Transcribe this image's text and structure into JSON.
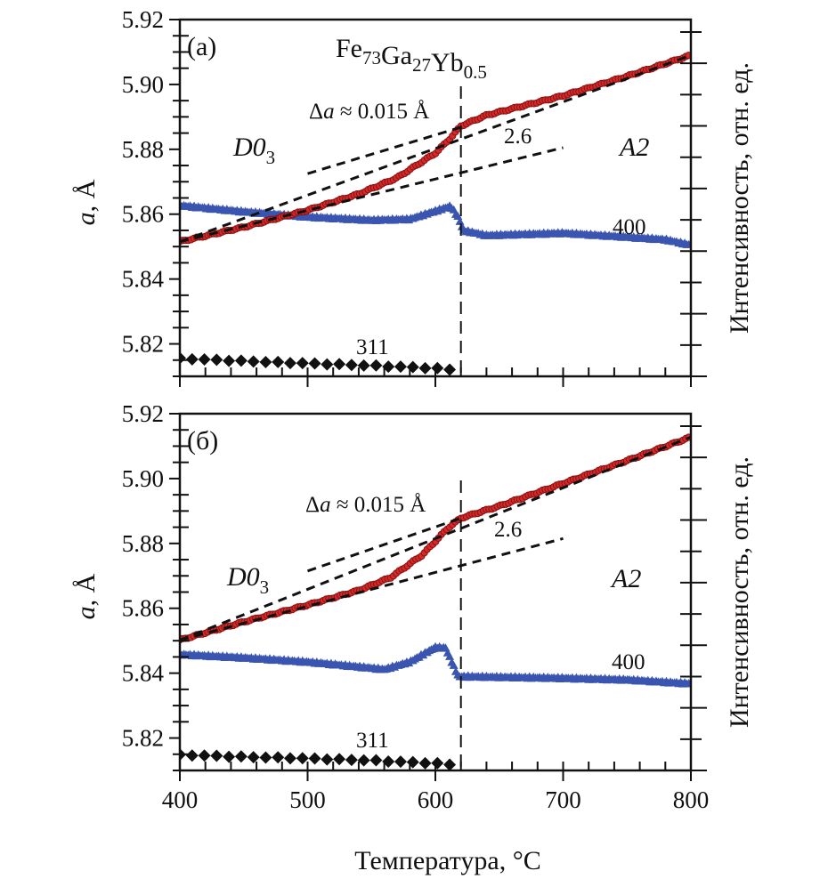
{
  "chart_data": [
    {
      "type": "scatter",
      "panel_label": "(a)",
      "title": "Fe73Ga27Yb0.5",
      "title_parts": [
        {
          "text": "Fe",
          "sub": "73"
        },
        {
          "text": "Ga",
          "sub": "27"
        },
        {
          "text": "Yb",
          "sub": "0.5"
        }
      ],
      "xlabel": "Температура, °C",
      "ylabel_left": "a, Å",
      "ylabel_right": "Интенсивность, отн. ед.",
      "xlim": [
        400,
        800
      ],
      "ylim": [
        5.81,
        5.92
      ],
      "xticks": [
        400,
        500,
        600,
        700,
        800
      ],
      "xtick_labels": [],
      "yticks": [
        5.82,
        5.84,
        5.86,
        5.88,
        5.9,
        5.92
      ],
      "ytick_labels": [
        "5.82",
        "5.84",
        "5.86",
        "5.88",
        "5.90",
        "5.92"
      ],
      "transition_temperature": 620,
      "annotations": {
        "delta_a": "Δa ≈ 0.015 Å",
        "slope_ratio": "2.6",
        "phase_low": "D0",
        "phase_low_sub": "3",
        "phase_high": "A2",
        "peak_400": "400",
        "peak_311": "311"
      },
      "series": [
        {
          "name": "lattice parameter a",
          "marker": "circle",
          "color": "#d42a2a",
          "edge_color": "#8a1010",
          "x": [
            400,
            450,
            500,
            540,
            570,
            600,
            612,
            620,
            640,
            700,
            750,
            800
          ],
          "y": [
            5.8515,
            5.856,
            5.8612,
            5.8662,
            5.8712,
            5.8788,
            5.8835,
            5.8872,
            5.8905,
            5.8965,
            5.9025,
            5.909
          ]
        },
        {
          "name": "400 intensity",
          "marker": "triangle",
          "color": "#3a55b0",
          "x": [
            400,
            450,
            500,
            550,
            580,
            600,
            612,
            618,
            622,
            640,
            700,
            750,
            780,
            800
          ],
          "y": [
            5.8627,
            5.8608,
            5.8592,
            5.8582,
            5.8585,
            5.861,
            5.8625,
            5.859,
            5.855,
            5.8535,
            5.8542,
            5.853,
            5.8522,
            5.8505
          ]
        },
        {
          "name": "311 intensity",
          "marker": "diamond",
          "color": "#111111",
          "x": [
            400,
            450,
            500,
            550,
            600,
            620
          ],
          "y": [
            5.8155,
            5.8147,
            5.814,
            5.8133,
            5.8125,
            5.8118
          ]
        }
      ],
      "fit_lines": [
        {
          "name": "A2 linear fit",
          "x": [
            400,
            800
          ],
          "y": [
            5.8515,
            5.909
          ]
        },
        {
          "name": "D03 linear fit",
          "x": [
            400,
            700
          ],
          "y": [
            5.8515,
            5.8805
          ]
        },
        {
          "name": "A2 fit extrapolation",
          "x": [
            500,
            620
          ],
          "y": [
            5.8725,
            5.8868
          ]
        }
      ]
    },
    {
      "type": "scatter",
      "panel_label": "(б)",
      "title": "",
      "xlabel": "Температура, °C",
      "ylabel_left": "a, Å",
      "ylabel_right": "Интенсивность, отн. ед.",
      "xlim": [
        400,
        800
      ],
      "ylim": [
        5.81,
        5.92
      ],
      "xticks": [
        400,
        500,
        600,
        700,
        800
      ],
      "xtick_labels": [
        "400",
        "500",
        "600",
        "700",
        "800"
      ],
      "yticks": [
        5.82,
        5.84,
        5.86,
        5.88,
        5.9,
        5.92
      ],
      "ytick_labels": [
        "5.82",
        "5.84",
        "5.86",
        "5.88",
        "5.90",
        "5.92"
      ],
      "transition_temperature": 620,
      "annotations": {
        "delta_a": "Δa ≈ 0.015 Å",
        "slope_ratio": "2.6",
        "phase_low": "D0",
        "phase_low_sub": "3",
        "phase_high": "A2",
        "peak_400": "400",
        "peak_311": "311"
      },
      "series": [
        {
          "name": "lattice parameter a",
          "marker": "circle",
          "color": "#d42a2a",
          "edge_color": "#8a1010",
          "x": [
            400,
            450,
            500,
            540,
            565,
            590,
            610,
            620,
            650,
            700,
            750,
            800
          ],
          "y": [
            5.8502,
            5.8558,
            5.861,
            5.8655,
            5.8695,
            5.8765,
            5.8848,
            5.8878,
            5.8915,
            5.8985,
            5.9055,
            5.9128
          ]
        },
        {
          "name": "400 intensity",
          "marker": "triangle",
          "color": "#3a55b0",
          "x": [
            400,
            450,
            500,
            540,
            560,
            580,
            600,
            608,
            614,
            618,
            625,
            700,
            750,
            800
          ],
          "y": [
            5.8458,
            5.8448,
            5.8435,
            5.842,
            5.8412,
            5.8435,
            5.848,
            5.8478,
            5.8425,
            5.839,
            5.839,
            5.8385,
            5.838,
            5.8368
          ]
        },
        {
          "name": "311 intensity",
          "marker": "diamond",
          "color": "#111111",
          "x": [
            400,
            450,
            500,
            550,
            600,
            620
          ],
          "y": [
            5.8148,
            5.8142,
            5.8137,
            5.8131,
            5.8122,
            5.8115
          ]
        }
      ],
      "fit_lines": [
        {
          "name": "A2 linear fit",
          "x": [
            400,
            800
          ],
          "y": [
            5.8502,
            5.9128
          ]
        },
        {
          "name": "D03 linear fit",
          "x": [
            400,
            700
          ],
          "y": [
            5.8502,
            5.8815
          ]
        },
        {
          "name": "A2 fit extrapolation",
          "x": [
            500,
            620
          ],
          "y": [
            5.8715,
            5.8878
          ]
        }
      ]
    }
  ]
}
